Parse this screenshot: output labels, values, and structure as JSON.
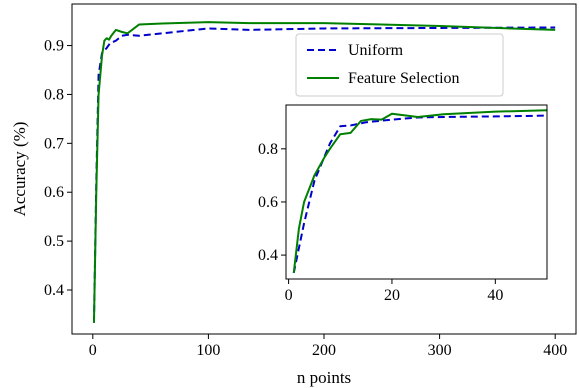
{
  "chart_data": [
    {
      "type": "line",
      "xlabel": "n points",
      "ylabel": "Accuracy (%)",
      "xlim": [
        -18,
        418
      ],
      "ylim": [
        0.31,
        0.985
      ],
      "xticks": [
        0,
        100,
        200,
        300,
        400
      ],
      "xtick_labels": [
        "0",
        "100",
        "200",
        "300",
        "400"
      ],
      "yticks": [
        0.4,
        0.5,
        0.6,
        0.7,
        0.8,
        0.9
      ],
      "ytick_labels": [
        "0.4",
        "0.5",
        "0.6",
        "0.7",
        "0.8",
        "0.9"
      ],
      "grid": false,
      "legend": "upper right",
      "series": [
        {
          "name": "Uniform",
          "color": "#0000cc",
          "style": "dashed",
          "x": [
            1,
            3,
            5,
            8,
            10,
            12,
            15,
            20,
            25,
            30,
            40,
            60,
            100,
            135,
            200,
            300,
            400
          ],
          "y": [
            0.333,
            0.62,
            0.84,
            0.885,
            0.89,
            0.895,
            0.905,
            0.91,
            0.92,
            0.922,
            0.92,
            0.925,
            0.935,
            0.932,
            0.935,
            0.936,
            0.937
          ]
        },
        {
          "name": "Feature Selection",
          "color": "#008000",
          "style": "solid",
          "x": [
            1,
            3,
            5,
            8,
            10,
            12,
            14,
            16,
            20,
            25,
            30,
            40,
            60,
            100,
            135,
            200,
            300,
            400
          ],
          "y": [
            0.333,
            0.6,
            0.8,
            0.88,
            0.91,
            0.915,
            0.912,
            0.92,
            0.932,
            0.928,
            0.925,
            0.943,
            0.945,
            0.948,
            0.946,
            0.946,
            0.94,
            0.932
          ]
        }
      ]
    },
    {
      "type": "line",
      "role": "inset",
      "xlim": [
        -0.5,
        50
      ],
      "ylim": [
        0.31,
        0.965
      ],
      "xticks": [
        0,
        20,
        40
      ],
      "xtick_labels": [
        "0",
        "20",
        "40"
      ],
      "yticks": [
        0.4,
        0.6,
        0.8
      ],
      "ytick_labels": [
        "0.4",
        "0.6",
        "0.8"
      ],
      "grid": false,
      "series": [
        {
          "name": "Uniform",
          "color": "#0000cc",
          "style": "dashed",
          "x": [
            1,
            3,
            5,
            8,
            10,
            12,
            15,
            20,
            25,
            30,
            40,
            50
          ],
          "y": [
            0.333,
            0.52,
            0.68,
            0.82,
            0.885,
            0.888,
            0.9,
            0.91,
            0.918,
            0.92,
            0.922,
            0.925
          ]
        },
        {
          "name": "Feature Selection",
          "color": "#008000",
          "style": "solid",
          "x": [
            1,
            2,
            3,
            5,
            7,
            8,
            10,
            12,
            14,
            16,
            18,
            20,
            25,
            30,
            40,
            50
          ],
          "y": [
            0.333,
            0.5,
            0.6,
            0.7,
            0.77,
            0.8,
            0.855,
            0.86,
            0.905,
            0.912,
            0.91,
            0.932,
            0.92,
            0.93,
            0.94,
            0.945
          ]
        }
      ]
    }
  ]
}
